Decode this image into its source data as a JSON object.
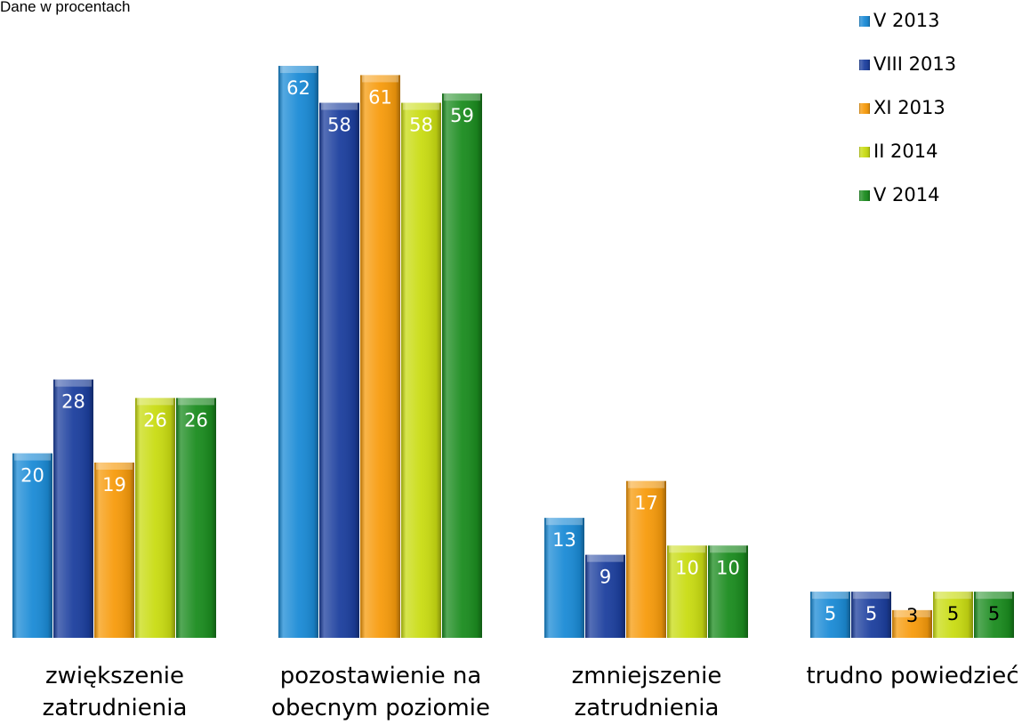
{
  "chart_data": {
    "type": "bar",
    "subtitle": "Dane w procentach",
    "categories": [
      "zwiększenie\nzatrudnienia",
      "pozostawienie na\nobecnym poziomie",
      "zmniejszenie\nzatrudnienia",
      "trudno powiedzieć"
    ],
    "series": [
      {
        "name": "V 2013",
        "color": "#1b8bd6",
        "values": [
          20,
          62,
          13,
          5
        ]
      },
      {
        "name": "VIII 2013",
        "color": "#1c3f9e",
        "values": [
          28,
          58,
          9,
          5
        ]
      },
      {
        "name": "XI 2013",
        "color": "#f79b0c",
        "values": [
          19,
          61,
          17,
          3
        ]
      },
      {
        "name": "II 2014",
        "color": "#c9dc12",
        "values": [
          26,
          58,
          10,
          5
        ]
      },
      {
        "name": "V 2014",
        "color": "#1b8c1f",
        "values": [
          26,
          59,
          10,
          5
        ]
      }
    ],
    "legend": "top-right"
  }
}
